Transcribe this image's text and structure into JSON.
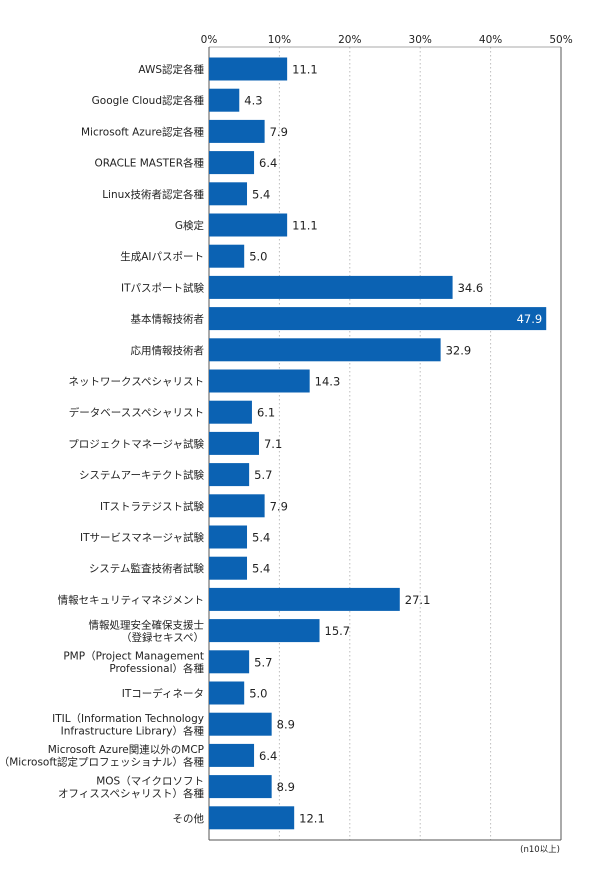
{
  "chart_data": {
    "type": "bar",
    "orientation": "horizontal",
    "xlim": [
      0,
      50
    ],
    "ticks": [
      0,
      10,
      20,
      30,
      40,
      50
    ],
    "tick_suffix": "%",
    "grid": true,
    "bar_color": "#0b62b3",
    "note": "(n10以上)",
    "categories": [
      [
        "AWS認定各種"
      ],
      [
        "Google Cloud認定各種"
      ],
      [
        "Microsoft Azure認定各種"
      ],
      [
        "ORACLE MASTER各種"
      ],
      [
        "Linux技術者認定各種"
      ],
      [
        "G検定"
      ],
      [
        "生成AIパスポート"
      ],
      [
        "ITパスポート試験"
      ],
      [
        "基本情報技術者"
      ],
      [
        "応用情報技術者"
      ],
      [
        "ネットワークスペシャリスト"
      ],
      [
        "データベーススペシャリスト"
      ],
      [
        "プロジェクトマネージャ試験"
      ],
      [
        "システムアーキテクト試験"
      ],
      [
        "ITストラテジスト試験"
      ],
      [
        "ITサービスマネージャ試験"
      ],
      [
        "システム監査技術者試験"
      ],
      [
        "情報セキュリティマネジメント"
      ],
      [
        "情報処理安全確保支援士",
        "（登録セキスペ）"
      ],
      [
        "PMP（Project Management",
        "Professional）各種"
      ],
      [
        "ITコーディネータ"
      ],
      [
        "ITIL（Information Technology",
        "Infrastructure Library）各種"
      ],
      [
        "Microsoft Azure関連以外のMCP",
        "（Microsoft認定プロフェッショナル）各種"
      ],
      [
        "MOS（マイクロソフト",
        "オフィススペシャリスト）各種"
      ],
      [
        "その他"
      ]
    ],
    "values": [
      11.1,
      4.3,
      7.9,
      6.4,
      5.4,
      11.1,
      5.0,
      34.6,
      47.9,
      32.9,
      14.3,
      6.1,
      7.1,
      5.7,
      7.9,
      5.4,
      5.4,
      27.1,
      15.7,
      5.7,
      5.0,
      8.9,
      6.4,
      8.9,
      12.1
    ],
    "value_labels": [
      "11.1",
      "4.3",
      "7.9",
      "6.4",
      "5.4",
      "11.1",
      "5.0",
      "34.6",
      "47.9",
      "32.9",
      "14.3",
      "6.1",
      "7.1",
      "5.7",
      "7.9",
      "5.4",
      "5.4",
      "27.1",
      "15.7",
      "5.7",
      "5.0",
      "8.9",
      "6.4",
      "8.9",
      "12.1"
    ]
  }
}
